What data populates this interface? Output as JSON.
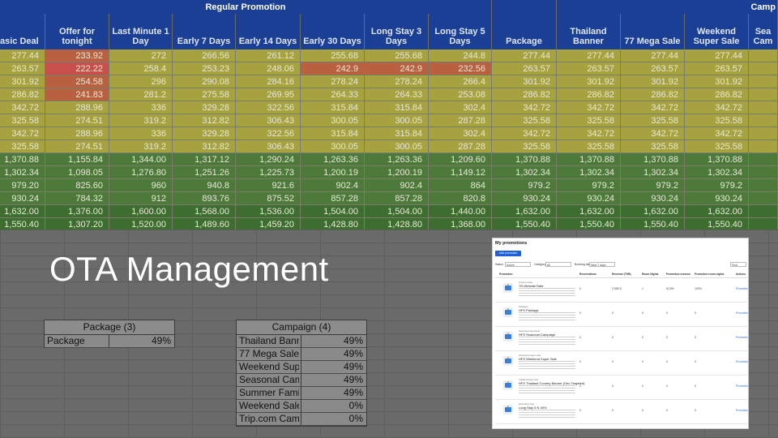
{
  "header": {
    "group_regular": "Regular Promotion",
    "group_campaign": "Camp",
    "columns": [
      "asic Deal",
      "Offer for\ntonight",
      "Last Minute 1\nDay",
      "Early 7 Days",
      "Early 14 Days",
      "Early 30 Days",
      "Long Stay 3\nDays",
      "Long Stay 5\nDays",
      "Package",
      "Thailand\nBanner",
      "77 Mega Sale",
      "Weekend\nSuper Sale",
      "Sea\nCam"
    ]
  },
  "rows": [
    [
      "277.44",
      "233.92",
      "272",
      "266.56",
      "261.12",
      "255.68",
      "255.68",
      "244.8",
      "277.44",
      "277.44",
      "277.44",
      "277.44",
      ""
    ],
    [
      "263.57",
      "222.22",
      "258.4",
      "253.23",
      "248.06",
      "242.9",
      "242.9",
      "232.56",
      "263.57",
      "263.57",
      "263.57",
      "263.57",
      ""
    ],
    [
      "301.92",
      "254.58",
      "296",
      "290.08",
      "284.16",
      "278.24",
      "278.24",
      "266.4",
      "301.92",
      "301.92",
      "301.92",
      "301.92",
      ""
    ],
    [
      "286.82",
      "241.83",
      "281.2",
      "275.58",
      "269.95",
      "264.33",
      "264.33",
      "253.08",
      "286.82",
      "286.82",
      "286.82",
      "286.82",
      ""
    ],
    [
      "342.72",
      "288.96",
      "336",
      "329.28",
      "322.56",
      "315.84",
      "315.84",
      "302.4",
      "342.72",
      "342.72",
      "342.72",
      "342.72",
      ""
    ],
    [
      "325.58",
      "274.51",
      "319.2",
      "312.82",
      "306.43",
      "300.05",
      "300.05",
      "287.28",
      "325.58",
      "325.58",
      "325.58",
      "325.58",
      ""
    ],
    [
      "342.72",
      "288.96",
      "336",
      "329.28",
      "322.56",
      "315.84",
      "315.84",
      "302.4",
      "342.72",
      "342.72",
      "342.72",
      "342.72",
      ""
    ],
    [
      "325.58",
      "274.51",
      "319.2",
      "312.82",
      "306.43",
      "300.05",
      "300.05",
      "287.28",
      "325.58",
      "325.58",
      "325.58",
      "325.58",
      ""
    ],
    [
      "1,370.88",
      "1,155.84",
      "1,344.00",
      "1,317.12",
      "1,290.24",
      "1,263.36",
      "1,263.36",
      "1,209.60",
      "1,370.88",
      "1,370.88",
      "1,370.88",
      "1,370.88",
      ""
    ],
    [
      "1,302.34",
      "1,098.05",
      "1,276.80",
      "1,251.26",
      "1,225.73",
      "1,200.19",
      "1,200.19",
      "1,149.12",
      "1,302.34",
      "1,302.34",
      "1,302.34",
      "1,302.34",
      ""
    ],
    [
      "979.20",
      "825.60",
      "960",
      "940.8",
      "921.6",
      "902.4",
      "902.4",
      "864",
      "979.2",
      "979.2",
      "979.2",
      "979.2",
      ""
    ],
    [
      "930.24",
      "784.32",
      "912",
      "893.76",
      "875.52",
      "857.28",
      "857.28",
      "820.8",
      "930.24",
      "930.24",
      "930.24",
      "930.24",
      ""
    ],
    [
      "1,632.00",
      "1,376.00",
      "1,600.00",
      "1,568.00",
      "1,536.00",
      "1,504.00",
      "1,504.00",
      "1,440.00",
      "1,632.00",
      "1,632.00",
      "1,632.00",
      "1,632.00",
      ""
    ],
    [
      "1,550.40",
      "1,307.20",
      "1,520.00",
      "1,489.60",
      "1,459.20",
      "1,428.80",
      "1,428.80",
      "1,368.00",
      "1,550.40",
      "1,550.40",
      "1,550.40",
      "1,550.40",
      ""
    ]
  ],
  "colors": {
    "header_bg": "#1b3f94",
    "yellow": "#a6a23f",
    "orange": "#b86040",
    "red": "#c8504c",
    "green": "#4d7a3a"
  },
  "slide_title": "OTA Management",
  "package_table": {
    "title": "Package (3)",
    "rows": [
      {
        "label": "Package",
        "value": "49%"
      }
    ]
  },
  "campaign_table": {
    "title": "Campaign (4)",
    "rows": [
      {
        "label": "Thailand Banner",
        "value": "49%"
      },
      {
        "label": "77 Mega Sale",
        "value": "49%"
      },
      {
        "label": "Weekend Super Sale",
        "value": "49%"
      },
      {
        "label": "Seasonal Campaign",
        "value": "49%"
      },
      {
        "label": "Summer Family",
        "value": "49%"
      },
      {
        "label": "Weekend Sale",
        "value": "0%"
      },
      {
        "label": "Trip.com Campaign",
        "value": "0%"
      }
    ]
  },
  "promotions_panel": {
    "title": "My promotions",
    "add_button": "Add promotion",
    "filters": {
      "status_label": "Status",
      "status_value": "Active",
      "category_label": "Category",
      "category_value": "All",
      "booking_label": "Booking date",
      "booking_value": "Next 7 days",
      "search_placeholder": "Find"
    },
    "columns": [
      "Promotion",
      "Reservations",
      "Revenue (THB)",
      "Room Nights",
      "Promotion revenue",
      "Promotion room nights",
      "Actions"
    ],
    "items": [
      {
        "type": "Custom deal",
        "name": "7/5 Website Rate",
        "values": [
          "0",
          "2,555.5",
          "1",
          "52.5%",
          "100%"
        ],
        "action": "Promotion details"
      },
      {
        "type": "Package",
        "name": "HFS Package",
        "values": [
          "0",
          "0",
          "0",
          "0",
          "0"
        ],
        "action": "Promotion details"
      },
      {
        "type": "Seasonal campaign",
        "name": "HFS Seasonal Campaign",
        "values": [
          "0",
          "0",
          "0",
          "0",
          "0"
        ],
        "action": "Promotion details"
      },
      {
        "type": "Weekend super sale",
        "name": "HFS Weekend Super Sale",
        "values": [
          "0",
          "0",
          "0",
          "0",
          "0"
        ],
        "action": "Promotion details"
      },
      {
        "type": "Thailand domestic",
        "name": "HFS Thailand Country Banner (Geo Targeted)",
        "values": [
          "0",
          "0",
          "0",
          "0",
          "0"
        ],
        "action": "Promotion details"
      },
      {
        "type": "Extended stay",
        "name": "Long Stay 5 N 45%",
        "values": [
          "0",
          "0",
          "0",
          "0",
          "0"
        ],
        "action": "Promotion details"
      }
    ]
  }
}
